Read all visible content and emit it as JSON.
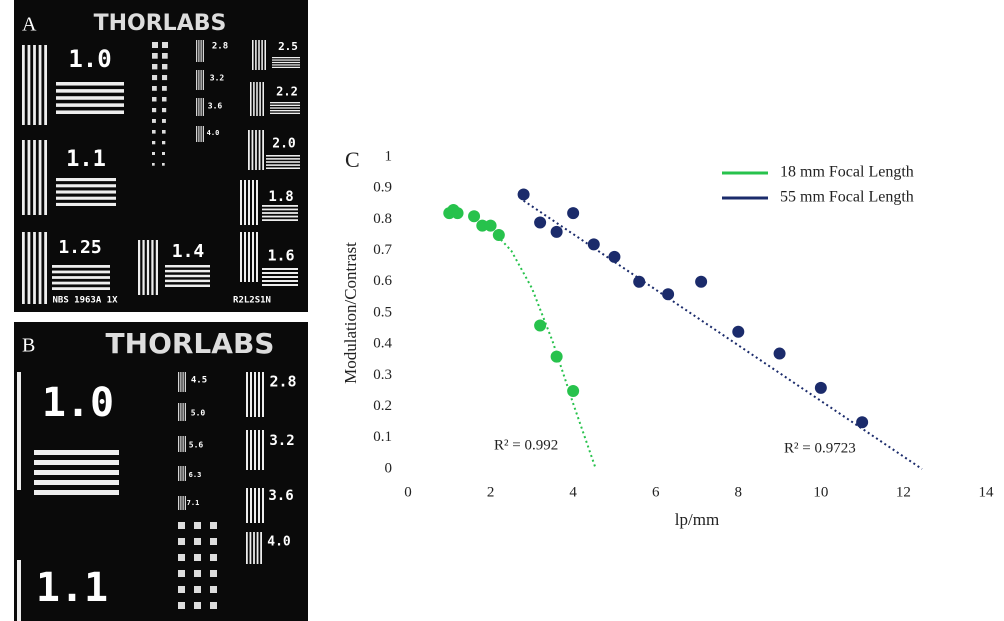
{
  "panel_a": {
    "label": "A",
    "logo": "THORLABS",
    "targets": [
      "1.0",
      "1.1",
      "1.25",
      "1.4",
      "1.6",
      "1.8",
      "2.0",
      "2.2",
      "2.5",
      "2.8",
      "3.2",
      "3.6",
      "4.0"
    ],
    "footer_left": "NBS 1963A 1X",
    "footer_right": "R2L2S1N"
  },
  "panel_b": {
    "label": "B",
    "logo": "THORLABS",
    "targets": [
      "1.0",
      "1.1",
      "2.8",
      "3.2",
      "3.6",
      "4.0",
      "4.5",
      "5.0",
      "5.6",
      "6.3",
      "7.1"
    ]
  },
  "chart_data": {
    "type": "scatter",
    "panel_label": "C",
    "x_label": "lp/mm",
    "y_label": "Modulation/Contrast",
    "xlim": [
      0,
      14
    ],
    "xticks": [
      0,
      2,
      4,
      6,
      8,
      10,
      12,
      14
    ],
    "ylim": [
      0,
      1
    ],
    "yticks": [
      0,
      0.1,
      0.2,
      0.3,
      0.4,
      0.5,
      0.6,
      0.7,
      0.8,
      0.9,
      1
    ],
    "grid": false,
    "legend": "upper right",
    "series": [
      {
        "name": "18 mm Focal Length",
        "color": "#27c24c",
        "x": [
          1.0,
          1.1,
          1.2,
          1.6,
          1.8,
          2.0,
          2.2,
          3.2,
          3.6,
          4.0
        ],
        "values": [
          0.82,
          0.83,
          0.82,
          0.81,
          0.78,
          0.78,
          0.75,
          0.46,
          0.36,
          0.25
        ],
        "trendline": {
          "label": "R² = 0.992",
          "x": [
            2.0,
            2.5,
            3.0,
            3.5,
            4.0,
            4.55
          ],
          "values": [
            0.77,
            0.7,
            0.58,
            0.41,
            0.21,
            0
          ]
        }
      },
      {
        "name": "55 mm Focal Length",
        "color": "#1b2b6b",
        "x": [
          2.8,
          3.2,
          3.6,
          4.0,
          4.5,
          5.0,
          5.6,
          6.3,
          7.1,
          8.0,
          9.0,
          10.0,
          11.0
        ],
        "values": [
          0.88,
          0.79,
          0.76,
          0.82,
          0.72,
          0.68,
          0.6,
          0.56,
          0.6,
          0.44,
          0.37,
          0.26,
          0.15
        ],
        "trendline": {
          "label": "R² = 0.9723",
          "x": [
            2.8,
            12.45
          ],
          "values": [
            0.86,
            0
          ]
        }
      }
    ]
  }
}
